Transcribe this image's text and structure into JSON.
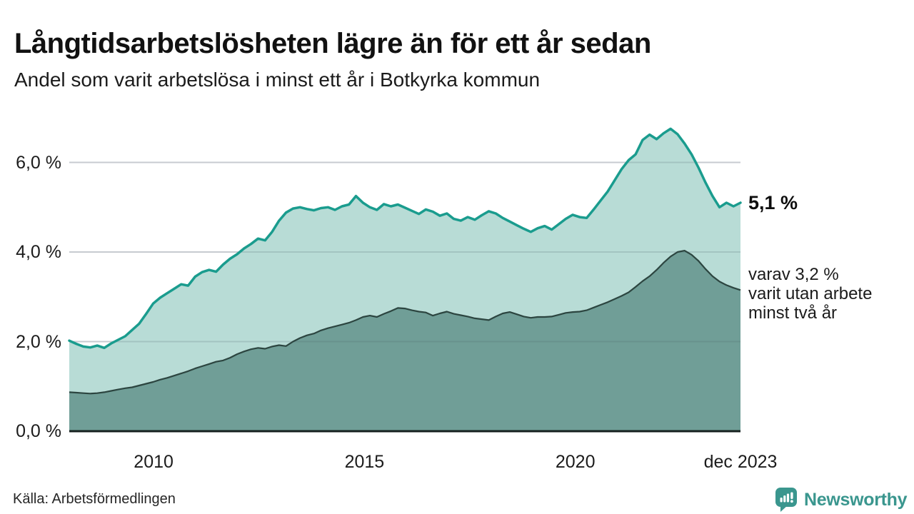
{
  "header": {
    "title": "Långtidsarbetslösheten lägre än för ett år sedan",
    "subtitle": "Andel som varit arbetslösa i minst ett år i Botkyrka kommun"
  },
  "chart_data": {
    "type": "area",
    "title": "Långtidsarbetslösheten lägre än för ett år sedan",
    "subtitle": "Andel som varit arbetslösa i minst ett år i Botkyrka kommun",
    "y_unit": "%",
    "ylim": [
      0,
      6.9
    ],
    "x_start_year": 2008,
    "x_end_year": 2023.9167,
    "x_step_months": 2,
    "grid": "horizontal",
    "yticks": [
      {
        "value": 6,
        "label": "6,0 %"
      },
      {
        "value": 4,
        "label": "4,0 %"
      },
      {
        "value": 2,
        "label": "2,0 %"
      },
      {
        "value": 0,
        "label": "0,0 %"
      }
    ],
    "xticks": [
      {
        "value": 2010,
        "label": "2010"
      },
      {
        "value": 2015,
        "label": "2015"
      },
      {
        "value": 2020,
        "label": "2020"
      },
      {
        "value": 2023.9167,
        "label": "dec 2023"
      }
    ],
    "colors": {
      "line_total": "#1a9c8e",
      "fill_total": "#b8dcd6",
      "line_two_years": "#2c4540",
      "fill_two_years": "#709e97",
      "baseline": "#16211f",
      "gridline": "#e3e4e8"
    },
    "series": [
      {
        "name": "Arbetslösa minst ett år",
        "latest_label": "5,1 %",
        "values": [
          2.02,
          1.95,
          1.89,
          1.87,
          1.91,
          1.86,
          1.96,
          2.04,
          2.12,
          2.26,
          2.4,
          2.62,
          2.85,
          2.98,
          3.08,
          3.18,
          3.28,
          3.25,
          3.45,
          3.55,
          3.6,
          3.56,
          3.72,
          3.85,
          3.95,
          4.08,
          4.18,
          4.3,
          4.26,
          4.45,
          4.7,
          4.88,
          4.97,
          5.0,
          4.96,
          4.93,
          4.98,
          5.0,
          4.94,
          5.02,
          5.06,
          5.25,
          5.1,
          5.0,
          4.94,
          5.07,
          5.02,
          5.06,
          4.99,
          4.92,
          4.85,
          4.95,
          4.9,
          4.81,
          4.86,
          4.74,
          4.7,
          4.78,
          4.72,
          4.82,
          4.91,
          4.86,
          4.76,
          4.68,
          4.6,
          4.52,
          4.45,
          4.53,
          4.58,
          4.5,
          4.62,
          4.74,
          4.83,
          4.78,
          4.76,
          4.95,
          5.15,
          5.35,
          5.6,
          5.85,
          6.05,
          6.18,
          6.5,
          6.62,
          6.52,
          6.65,
          6.75,
          6.63,
          6.42,
          6.18,
          5.88,
          5.55,
          5.25,
          5.0,
          5.1,
          5.02,
          5.1
        ]
      },
      {
        "name": "Varav utan arbete minst två år",
        "latest_label": "3,2 %",
        "values": [
          0.87,
          0.86,
          0.85,
          0.84,
          0.85,
          0.87,
          0.9,
          0.93,
          0.96,
          0.98,
          1.02,
          1.06,
          1.1,
          1.15,
          1.19,
          1.24,
          1.29,
          1.34,
          1.4,
          1.45,
          1.5,
          1.55,
          1.58,
          1.64,
          1.72,
          1.78,
          1.83,
          1.86,
          1.84,
          1.89,
          1.92,
          1.9,
          2.0,
          2.08,
          2.14,
          2.18,
          2.25,
          2.3,
          2.34,
          2.38,
          2.42,
          2.48,
          2.55,
          2.58,
          2.55,
          2.62,
          2.68,
          2.75,
          2.74,
          2.7,
          2.67,
          2.65,
          2.58,
          2.63,
          2.67,
          2.62,
          2.59,
          2.56,
          2.52,
          2.5,
          2.48,
          2.56,
          2.63,
          2.66,
          2.61,
          2.56,
          2.53,
          2.55,
          2.55,
          2.56,
          2.6,
          2.64,
          2.66,
          2.67,
          2.7,
          2.76,
          2.82,
          2.88,
          2.95,
          3.02,
          3.1,
          3.22,
          3.35,
          3.46,
          3.6,
          3.76,
          3.9,
          4.0,
          4.03,
          3.94,
          3.8,
          3.62,
          3.46,
          3.34,
          3.26,
          3.2,
          3.15
        ]
      }
    ],
    "annotation_latest": "5,1 %",
    "annotation_secondary": [
      "varav 3,2 %",
      "varit utan arbete",
      "minst två år"
    ]
  },
  "footer": {
    "source": "Källa: Arbetsförmedlingen",
    "brand": "Newsworthy",
    "brand_icon": "newsworthy-speech-bubble-bars-icon"
  }
}
